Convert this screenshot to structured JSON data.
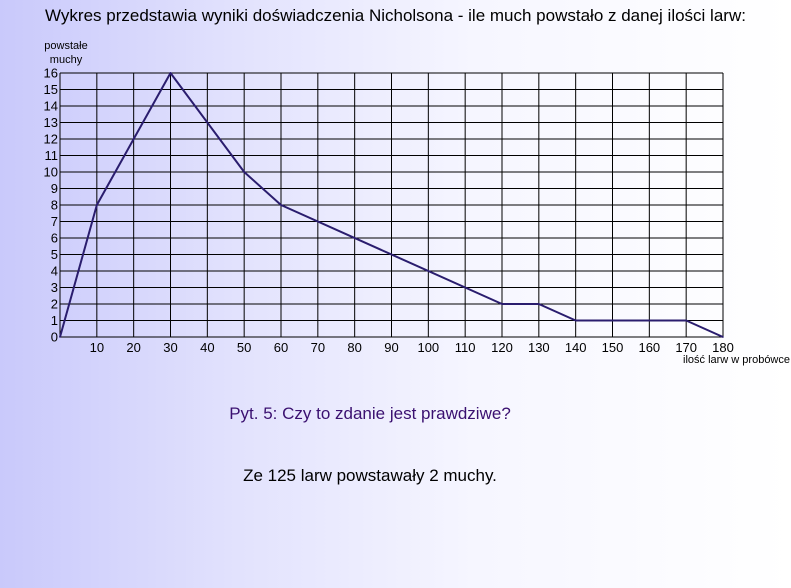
{
  "title": "Wykres przedstawia wyniki doświadczenia Nicholsona - ile much powstało z danej ilości larw:",
  "question": "Pyt. 5: Czy to zdanie jest prawdziwe?",
  "statement": "Ze 125 larw powstawały 2 muchy.",
  "colors": {
    "line": "#2a1d6e",
    "grid": "#000000",
    "question": "#3a1070"
  },
  "chart_data": {
    "type": "line",
    "ylabel": [
      "powstałe",
      "muchy"
    ],
    "xlabel": "ilość larw w probówce",
    "xlim": [
      0,
      180
    ],
    "ylim": [
      0,
      16
    ],
    "x_ticks": [
      10,
      20,
      30,
      40,
      50,
      60,
      70,
      80,
      90,
      100,
      110,
      120,
      130,
      140,
      150,
      160,
      170,
      180
    ],
    "y_ticks": [
      0,
      1,
      2,
      3,
      4,
      5,
      6,
      7,
      8,
      9,
      10,
      11,
      12,
      13,
      14,
      15,
      16
    ],
    "grid": true,
    "series": [
      {
        "x": [
          0,
          10,
          30,
          50,
          60,
          120,
          130,
          140,
          170,
          180
        ],
        "y": [
          0,
          8,
          16,
          10,
          8,
          2,
          2,
          1,
          1,
          0
        ]
      }
    ]
  }
}
